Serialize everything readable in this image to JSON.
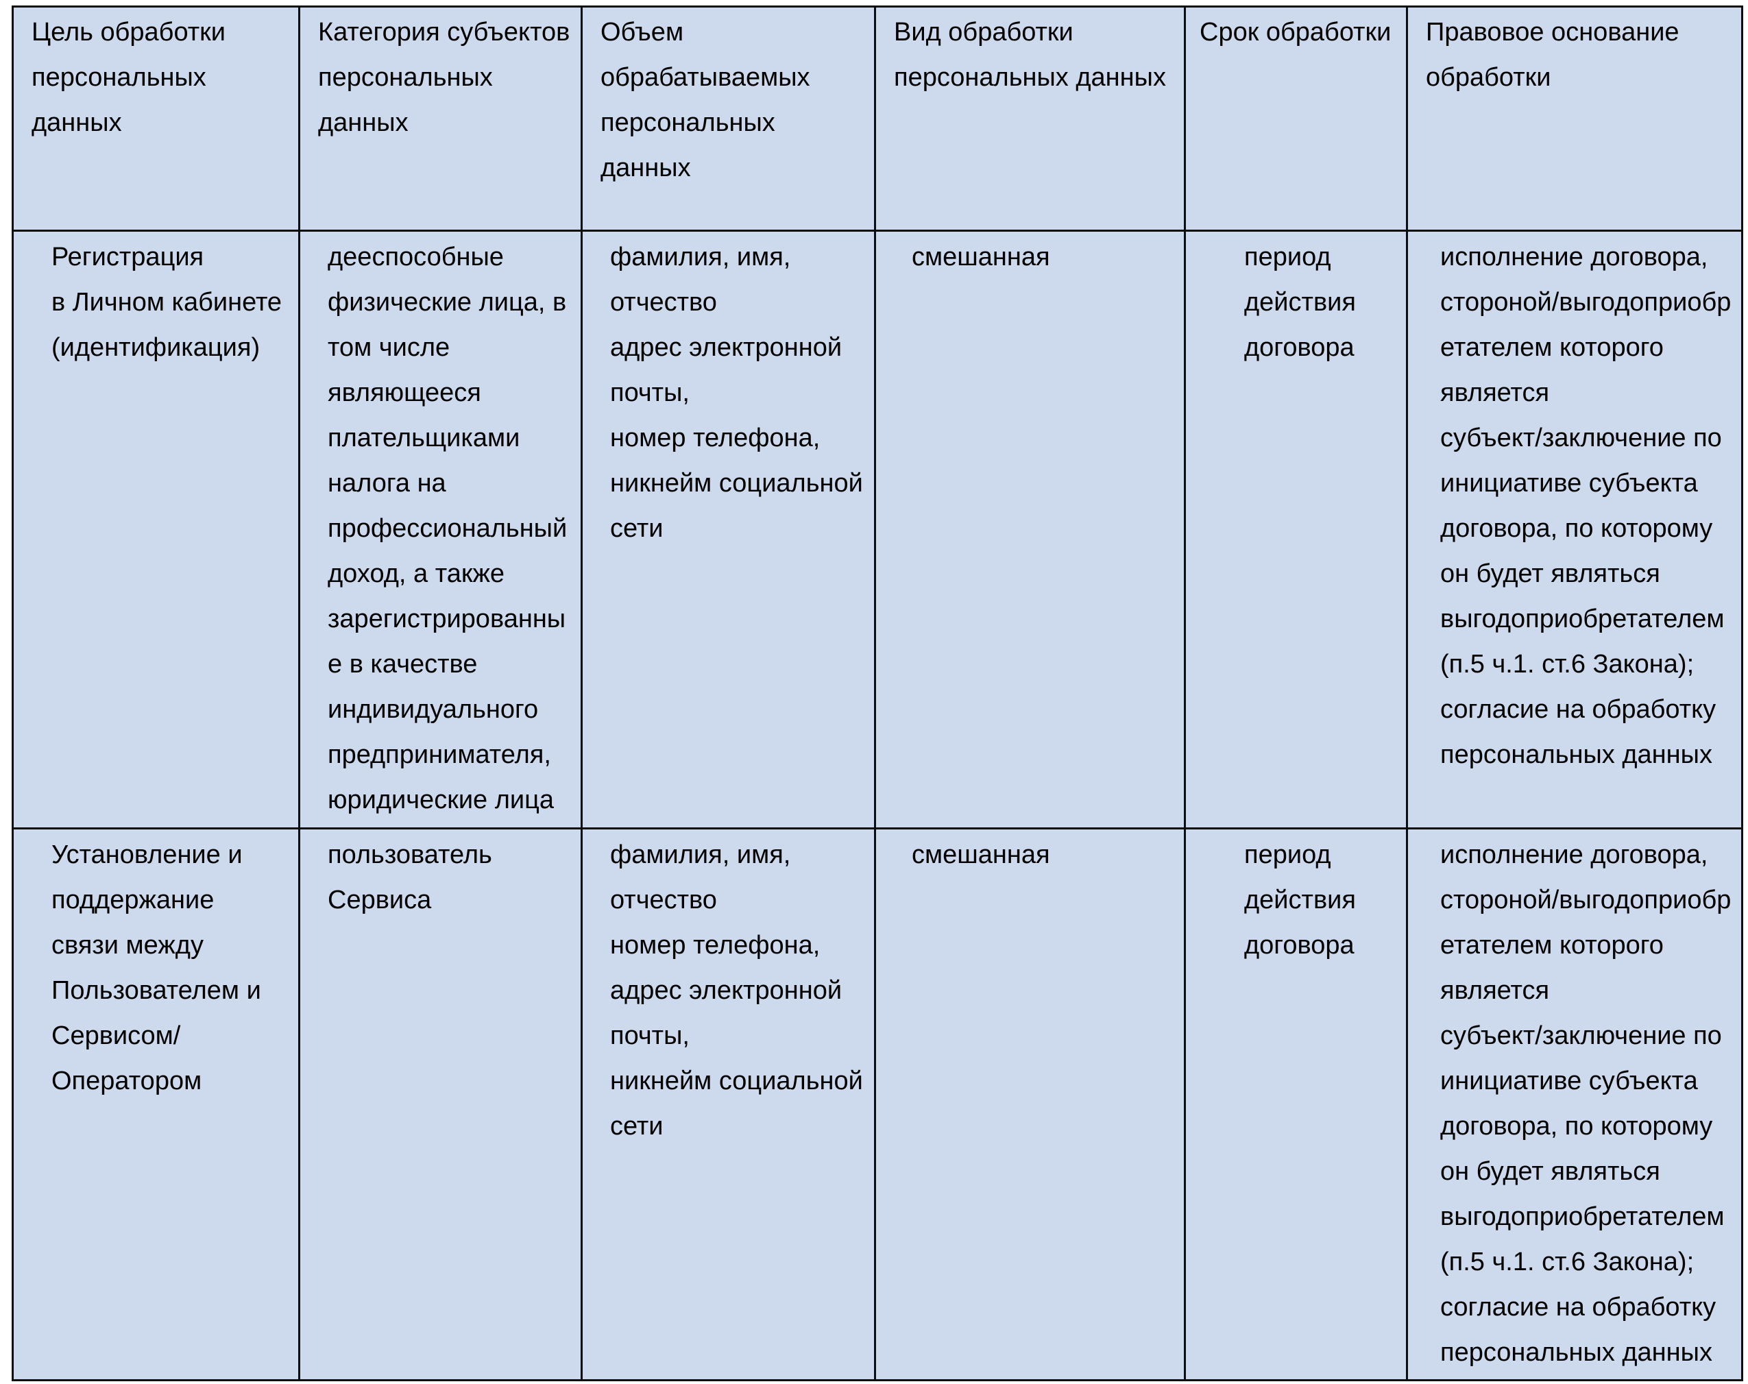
{
  "colors": {
    "cell_bg": "#cdd9ec",
    "border": "#0d0d0d",
    "text": "#000000",
    "page_bg": "#ffffff"
  },
  "table": {
    "header": [
      "Цель обработки\nперсональных\nданных",
      "Категория субъектов\nперсональных\nданных",
      "Объем\nобрабатываемых\nперсональных\nданных",
      "Вид обработки\nперсональных данных",
      "Срок обработки",
      "Правовое основание\nобработки"
    ],
    "rows": [
      {
        "cells": [
          "Регистрация\nв Личном кабинете\n(идентификация)",
          "дееспособные\nфизические лица, в\nтом числе\nявляющееся\nплательщиками\nналога на\nпрофессиональный\nдоход, а также\nзарегистрированны\nе в качестве\nиндивидуального\nпредпринимателя,\nюридические лица",
          "фамилия, имя,\nотчество\nадрес электронной\nпочты,\nномер телефона,\nникнейм социальной\nсети",
          "смешанная",
          "период\nдействия\nдоговора",
          "исполнение договора,\nстороной/выгодоприобр\nетателем которого\nявляется\nсубъект/заключение по\nинициативе субъекта\nдоговора, по которому\nон будет являться\nвыгодоприобретателем\n(п.5 ч.1. ст.6 Закона);\nсогласие на обработку\nперсональных данных"
        ]
      },
      {
        "cells": [
          "Установление и\nподдержание\nсвязи между\nПользователем и\nСервисом/\nОператором",
          "пользователь\nСервиса",
          "фамилия, имя,\nотчество\nномер телефона,\nадрес электронной\nпочты,\nникнейм социальной\nсети",
          "смешанная",
          "период\nдействия\nдоговора",
          "исполнение договора,\nстороной/выгодоприобр\nетателем которого\nявляется\nсубъект/заключение по\nинициативе субъекта\nдоговора, по которому\nон будет являться\nвыгодоприобретателем\n(п.5 ч.1. ст.6 Закона);\nсогласие на обработку\nперсональных данных"
        ]
      }
    ]
  }
}
